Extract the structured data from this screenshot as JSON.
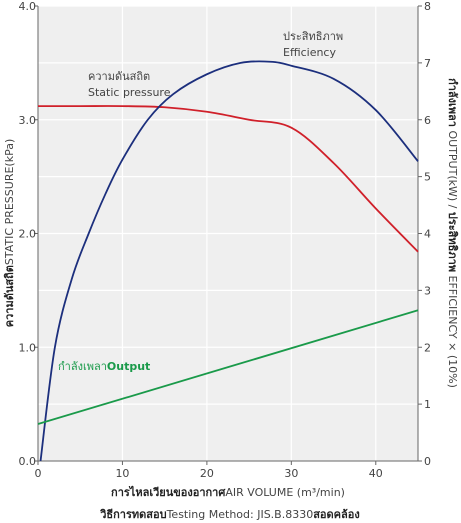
{
  "chart_data": {
    "type": "line",
    "xlabel": [
      "การไหลเวียนของอากาศ",
      "AIR VOLUME (m³/min)"
    ],
    "ylabel": [
      "ความดันสถิต",
      "STATIC PRESSURE(kPa)"
    ],
    "y2label": [
      "กำลังเพลา",
      " OUTPUT(kW) / ",
      "ประสิทธิภาพ",
      " EFFICIENCY × (10%)"
    ],
    "footer": [
      "วิธีการทดสอบ",
      "Testing Method: JIS.B.8330",
      "สอดคล้อง"
    ],
    "xlim": [
      0,
      45
    ],
    "xticks": [
      0,
      10,
      20,
      30,
      40
    ],
    "ylim": [
      0,
      4
    ],
    "yticks": [
      {
        "value": 0,
        "label": "0.0"
      },
      {
        "value": 1,
        "label": "1.0"
      },
      {
        "value": 2,
        "label": "2.0"
      },
      {
        "value": 3,
        "label": "3.0"
      },
      {
        "value": 4,
        "label": "4.0"
      }
    ],
    "y2lim": [
      0,
      8
    ],
    "y2ticks": [
      0,
      1,
      2,
      3,
      4,
      5,
      6,
      7,
      8
    ],
    "grid": true,
    "series": [
      {
        "name": "Static pressure",
        "name_th": "ความดันสถิต",
        "color": "#d0202a",
        "x": [
          0,
          5,
          10,
          15,
          20,
          25,
          30,
          35,
          40,
          45
        ],
        "values": [
          3.12,
          3.12,
          3.12,
          3.11,
          3.07,
          3.0,
          2.93,
          2.62,
          2.22,
          1.84
        ]
      },
      {
        "name": "Efficiency",
        "name_th": "ประสิทธิภาพ",
        "color": "#1c2f7d",
        "axis": "y2",
        "x": [
          0.3,
          2,
          4,
          6,
          8,
          10,
          13,
          16,
          20,
          24,
          27.5,
          30,
          35,
          40,
          45
        ],
        "values": [
          0,
          2.0,
          3.2,
          4.0,
          4.7,
          5.3,
          6.0,
          6.45,
          6.8,
          7.0,
          7.02,
          6.95,
          6.72,
          6.17,
          5.27
        ]
      },
      {
        "name": "Output",
        "name_th": "กำลังเพลา",
        "color": "#1a9a4a",
        "axis": "y2",
        "x": [
          0,
          45
        ],
        "values": [
          0.65,
          2.65
        ]
      }
    ]
  }
}
